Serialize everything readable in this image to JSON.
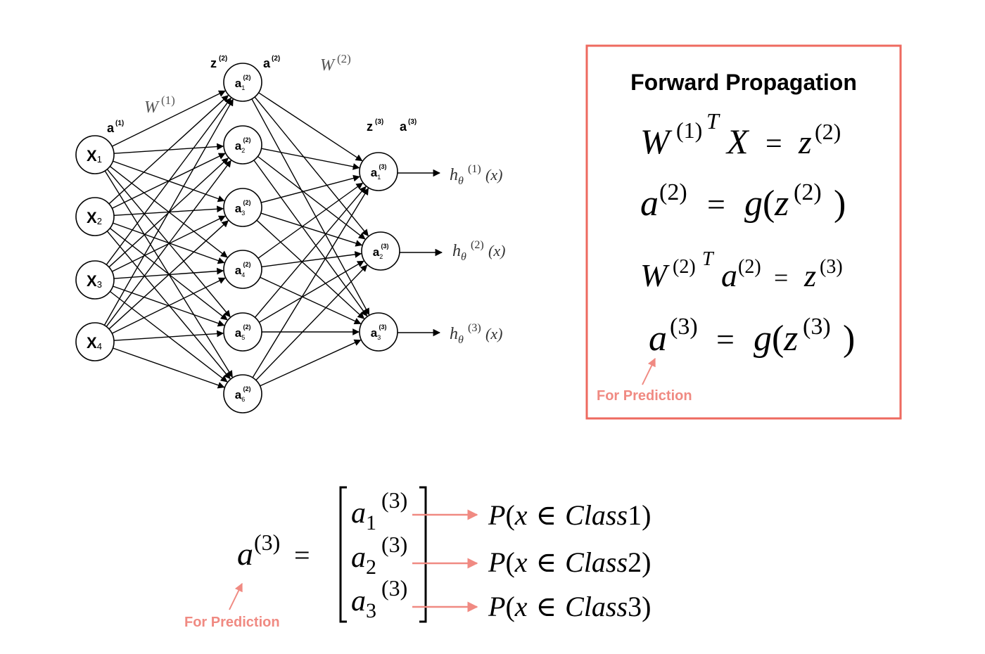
{
  "network": {
    "input_layer": {
      "label": {
        "base": "a",
        "sup": "(1)"
      },
      "nodes": [
        {
          "base": "X",
          "sub": "1"
        },
        {
          "base": "X",
          "sub": "2"
        },
        {
          "base": "X",
          "sub": "3"
        },
        {
          "base": "X",
          "sub": "4"
        }
      ]
    },
    "weight1": {
      "base": "W",
      "sup": "(1)"
    },
    "weight2": {
      "base": "W",
      "sup": "(2)"
    },
    "hidden_layer": {
      "labels": [
        {
          "base": "z",
          "sup": "(2)"
        },
        {
          "base": "a",
          "sup": "(2)"
        }
      ],
      "nodes": [
        {
          "base": "a",
          "sub": "1",
          "sup": "(2)"
        },
        {
          "base": "a",
          "sub": "2",
          "sup": "(2)"
        },
        {
          "base": "a",
          "sub": "3",
          "sup": "(2)"
        },
        {
          "base": "a",
          "sub": "4",
          "sup": "(2)"
        },
        {
          "base": "a",
          "sub": "5",
          "sup": "(2)"
        },
        {
          "base": "a",
          "sub": "6",
          "sup": "(2)"
        }
      ]
    },
    "output_layer": {
      "labels": [
        {
          "base": "z",
          "sup": "(3)"
        },
        {
          "base": "a",
          "sup": "(3)"
        }
      ],
      "nodes": [
        {
          "base": "a",
          "sub": "1",
          "sup": "(3)"
        },
        {
          "base": "a",
          "sub": "2",
          "sup": "(3)"
        },
        {
          "base": "a",
          "sub": "3",
          "sup": "(3)"
        }
      ]
    },
    "outputs": [
      {
        "base": "h",
        "sub": "θ",
        "sup": "(1)",
        "arg": "(x)"
      },
      {
        "base": "h",
        "sub": "θ",
        "sup": "(2)",
        "arg": "(x)"
      },
      {
        "base": "h",
        "sub": "θ",
        "sup": "(3)",
        "arg": "(x)"
      }
    ]
  },
  "forward_box": {
    "title": "Forward Propagation",
    "border_color": "#ee6a5f",
    "eq1": {
      "W": "W",
      "sup1": "(1)",
      "supT": "T",
      "X": "X",
      "eq": "=",
      "z": "z",
      "sup2": "(2)"
    },
    "eq2": {
      "a": "a",
      "sup1": "(2)",
      "eq": "=",
      "g": "g",
      "lp": "(",
      "z": "z",
      "sup2": "(2)",
      "rp": ")"
    },
    "eq3": {
      "W": "W",
      "sup1": "(2)",
      "supT": "T",
      "a": "a",
      "sup2": "(2)",
      "eq": "=",
      "z": "z",
      "sup3": "(3)"
    },
    "eq4": {
      "a": "a",
      "sup1": "(3)",
      "eq": "=",
      "g": "g",
      "lp": "(",
      "z": "z",
      "sup2": "(3)",
      "rp": ")"
    },
    "note": "For Prediction"
  },
  "bottom": {
    "lhs": {
      "a": "a",
      "sup": "(3)",
      "eq": "="
    },
    "matrix": [
      {
        "a": "a",
        "sub": "1",
        "sup": "(3)"
      },
      {
        "a": "a",
        "sub": "2",
        "sup": "(3)"
      },
      {
        "a": "a",
        "sub": "3",
        "sup": "(3)"
      }
    ],
    "probs": [
      {
        "P": "P",
        "lp": "(",
        "x": "x",
        "in": "∈",
        "cls": "Class",
        "n": "1",
        "rp": ")"
      },
      {
        "P": "P",
        "lp": "(",
        "x": "x",
        "in": "∈",
        "cls": "Class",
        "n": "2",
        "rp": ")"
      },
      {
        "P": "P",
        "lp": "(",
        "x": "x",
        "in": "∈",
        "cls": "Class",
        "n": "3",
        "rp": ")"
      }
    ],
    "note": "For Prediction",
    "note_color": "#f08a82"
  }
}
